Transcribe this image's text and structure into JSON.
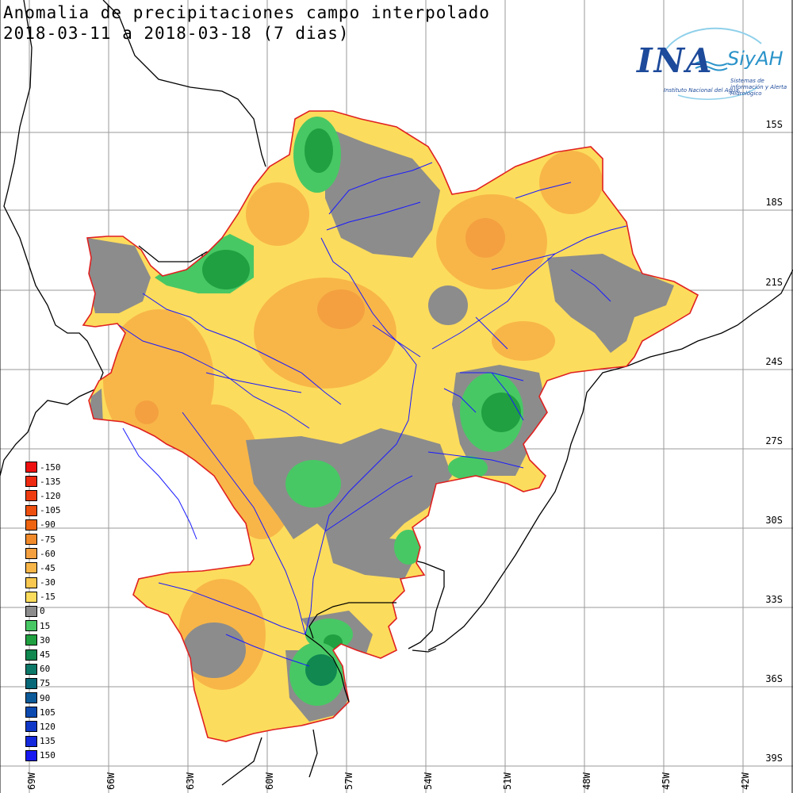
{
  "title": {
    "line1": "Anomalia de precipitaciones campo interpolado",
    "line2": "2018-03-11 a 2018-03-18 (7 dias)"
  },
  "logo": {
    "name": "INA",
    "system": "SiyAH",
    "subtitle1": "Instituto Nacional del Agua",
    "subtitle2": "Sistemas de información y Alerta Hidrológico"
  },
  "latitude_labels": [
    "15S",
    "18S",
    "21S",
    "24S",
    "27S",
    "30S",
    "33S",
    "36S",
    "39S"
  ],
  "longitude_labels": [
    "69W",
    "66W",
    "63W",
    "60W",
    "57W",
    "54W",
    "51W",
    "48W",
    "45W",
    "42W"
  ],
  "legend": {
    "units": "",
    "entries": [
      {
        "value": "-150",
        "color": "#ee1010"
      },
      {
        "value": "-135",
        "color": "#ee2a10"
      },
      {
        "value": "-120",
        "color": "#ee3c10"
      },
      {
        "value": "-105",
        "color": "#ee5010"
      },
      {
        "value": "-90",
        "color": "#ee6410"
      },
      {
        "value": "-75",
        "color": "#f08a2a"
      },
      {
        "value": "-60",
        "color": "#f4a040"
      },
      {
        "value": "-45",
        "color": "#f8b648"
      },
      {
        "value": "-30",
        "color": "#f8c850"
      },
      {
        "value": "-15",
        "color": "#fcdc5c"
      },
      {
        "value": "0",
        "color": "#8c8c8c"
      },
      {
        "value": "15",
        "color": "#48c864"
      },
      {
        "value": "30",
        "color": "#20a040"
      },
      {
        "value": "45",
        "color": "#108850"
      },
      {
        "value": "60",
        "color": "#0c7868"
      },
      {
        "value": "75",
        "color": "#086878"
      },
      {
        "value": "90",
        "color": "#0c5a98"
      },
      {
        "value": "105",
        "color": "#0c4ab0"
      },
      {
        "value": "120",
        "color": "#1038c8"
      },
      {
        "value": "135",
        "color": "#1428dc"
      },
      {
        "value": "150",
        "color": "#1818f0"
      }
    ]
  },
  "colors": {
    "basin_outline": "#e02020",
    "rivers": "#1a1aff",
    "borders": "#000000",
    "grid": "#9a9a9a",
    "zero_anomaly": "#8c8c8c",
    "dry": "#fcdc5c",
    "wet": "#48c864"
  }
}
